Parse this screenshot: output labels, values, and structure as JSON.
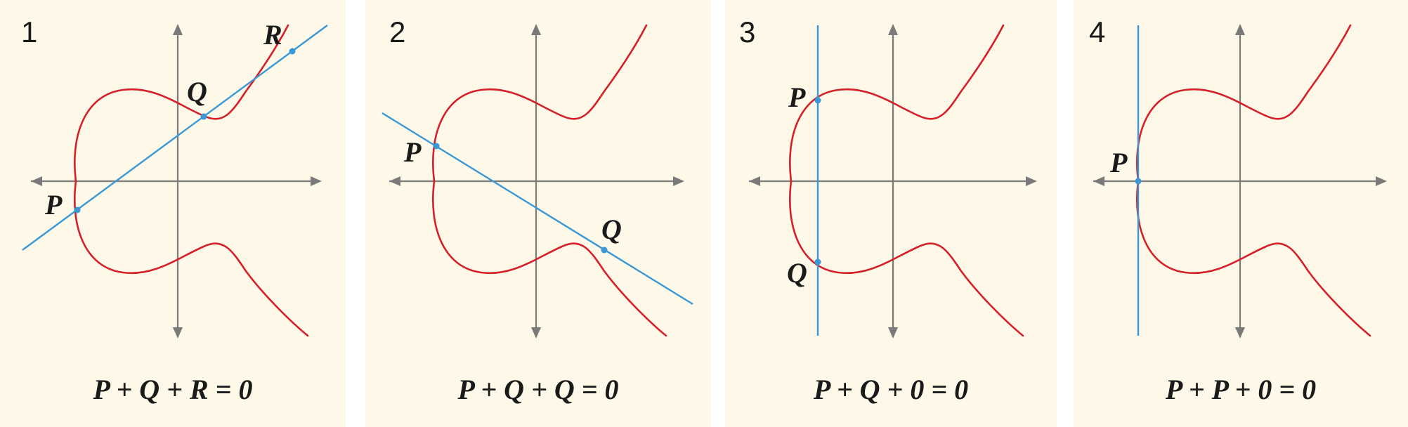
{
  "panels": [
    {
      "number": "1",
      "points": [
        {
          "name": "P"
        },
        {
          "name": "Q"
        },
        {
          "name": "R"
        }
      ],
      "equation": "P + Q + R = 0"
    },
    {
      "number": "2",
      "points": [
        {
          "name": "P"
        },
        {
          "name": "Q"
        }
      ],
      "equation": "P + Q + Q = 0"
    },
    {
      "number": "3",
      "points": [
        {
          "name": "P"
        },
        {
          "name": "Q"
        }
      ],
      "equation": "P + Q + 0 = 0"
    },
    {
      "number": "4",
      "points": [
        {
          "name": "P"
        }
      ],
      "equation": "P + P + 0 = 0"
    }
  ],
  "colors": {
    "curve": "#d4202a",
    "line": "#3b98d6",
    "axes": "#7a7a7a",
    "panel_background": "#fdf8e7"
  }
}
